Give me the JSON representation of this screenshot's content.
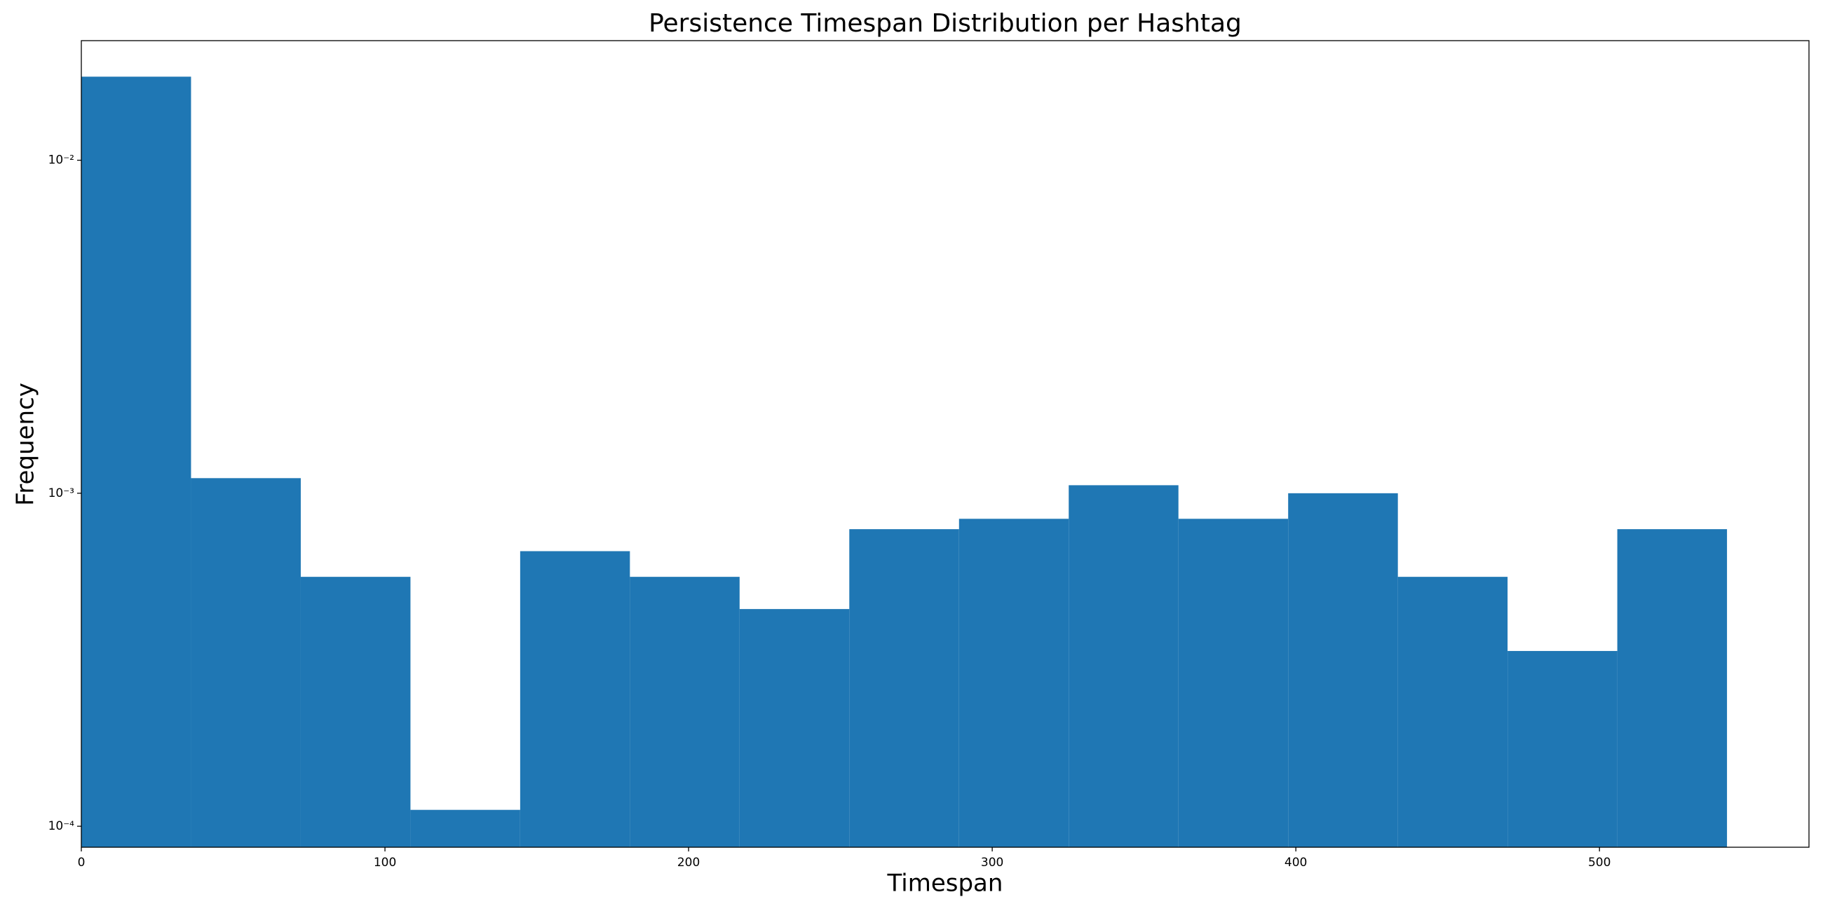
{
  "chart_data": {
    "type": "histogram",
    "title": "Persistence Timespan Distribution per Hashtag",
    "xlabel": "Timespan",
    "ylabel": "Frequency",
    "bins": [
      0,
      36.13,
      72.27,
      108.4,
      144.53,
      180.67,
      216.8,
      252.93,
      289.07,
      325.2,
      361.33,
      397.47,
      433.6,
      469.73,
      505.87,
      542
    ],
    "values": [
      0.01782,
      0.00111,
      0.000561,
      0.000112,
      0.00067,
      0.000561,
      0.000449,
      0.00078,
      0.000838,
      0.001057,
      0.000838,
      0.001,
      0.000561,
      0.000336,
      0.00078
    ],
    "color": "#1f77b4",
    "xlim": [
      0,
      569
    ],
    "xticks": [
      0,
      100,
      200,
      300,
      400,
      500
    ],
    "ylim": [
      8.65e-05,
      0.02286
    ],
    "log_y": true,
    "yticks": [
      {
        "value": 0.01,
        "label": "10⁻²"
      },
      {
        "value": 0.001,
        "label": "10⁻³"
      },
      {
        "value": 0.0001,
        "label": "10⁻⁴"
      }
    ]
  }
}
